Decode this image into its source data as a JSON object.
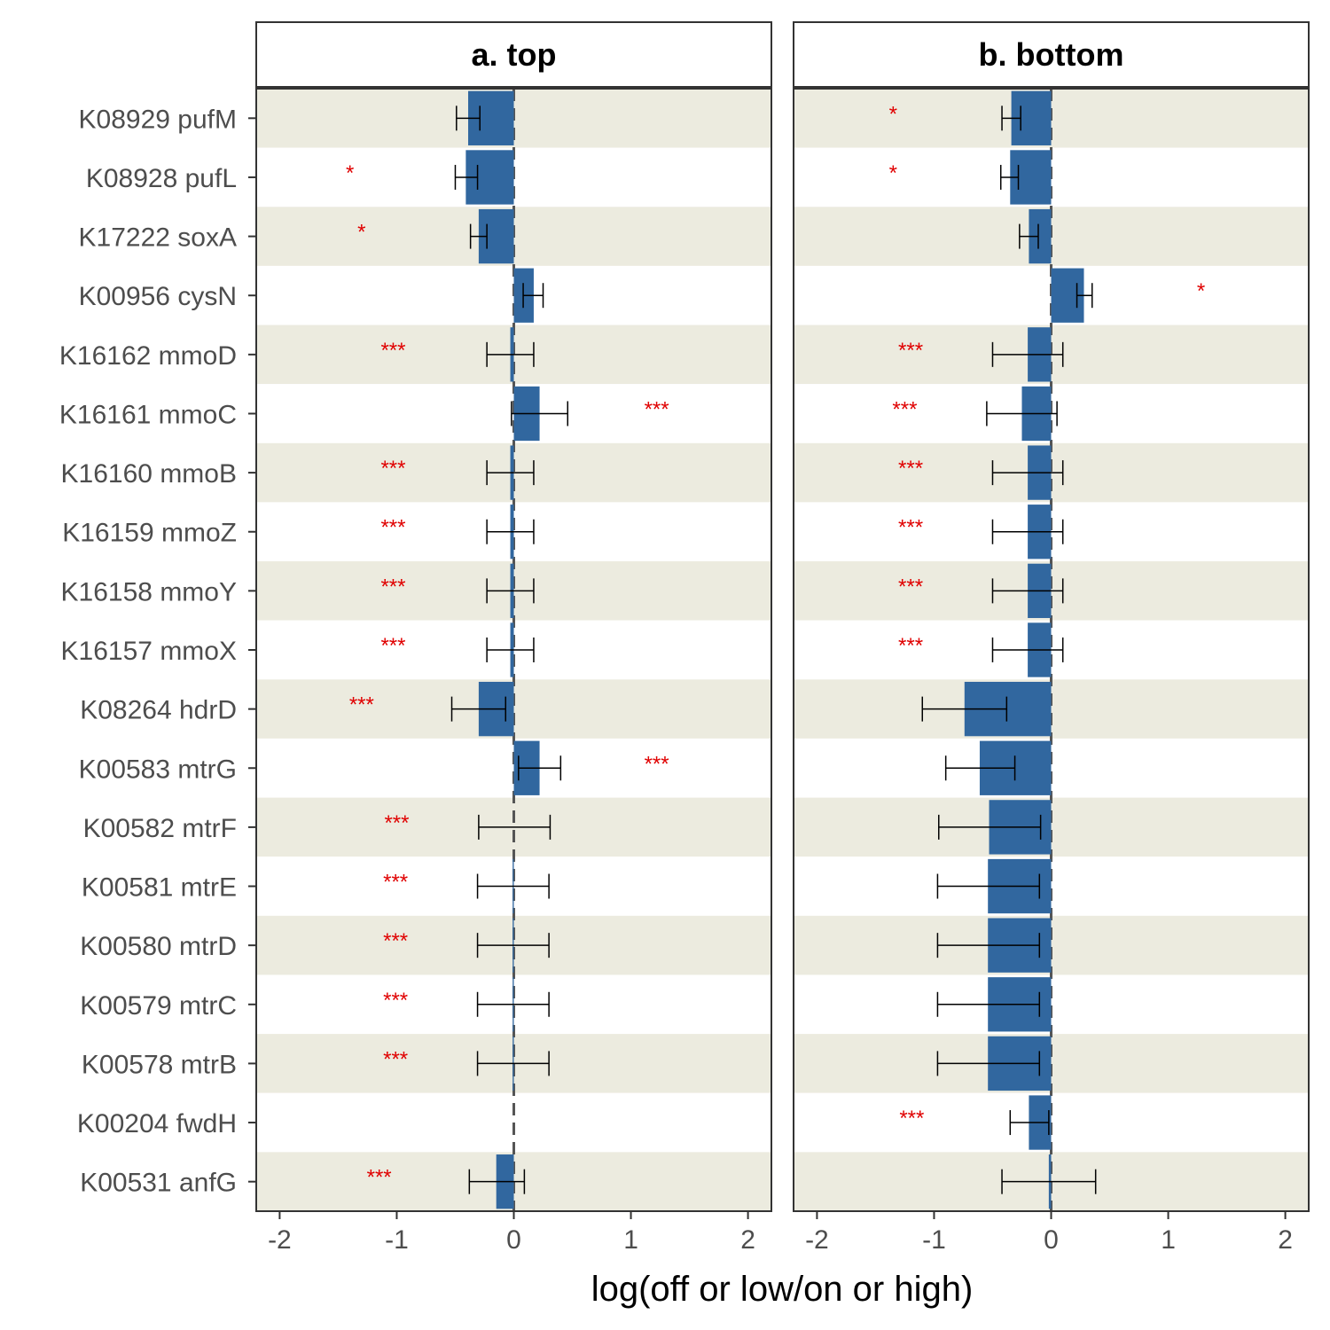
{
  "chart_data": {
    "type": "bar",
    "orientation": "horizontal",
    "xlabel": "log(off or low/on or high)",
    "xlim": [
      -2.2,
      2.2
    ],
    "x_ticks": [
      -2,
      -1,
      0,
      1,
      2
    ],
    "x_tick_labels": [
      "-2",
      "-1",
      "0",
      "1",
      "2"
    ],
    "reference_line": 0,
    "grid": false,
    "row_band_colors": [
      "#ecebdf",
      "#ffffff"
    ],
    "colors": {
      "bar": "#31679f",
      "significance": "#e00000",
      "error_bar": "#000000",
      "reference_line": "#555555"
    },
    "categories": [
      "K08929 pufM",
      "K08928 pufL",
      "K17222 soxA",
      "K00956 cysN",
      "K16162 mmoD",
      "K16161 mmoC",
      "K16160 mmoB",
      "K16159 mmoZ",
      "K16158 mmoY",
      "K16157 mmoX",
      "K08264 hdrD",
      "K00583 mtrG",
      "K00582 mtrF",
      "K00581 mtrE",
      "K00580 mtrD",
      "K00579 mtrC",
      "K00578 mtrB",
      "K00204 fwdH",
      "K00531 anfG"
    ],
    "panels": [
      {
        "title": "a. top",
        "values": [
          -0.39,
          -0.41,
          -0.3,
          0.17,
          -0.03,
          0.22,
          -0.03,
          -0.03,
          -0.03,
          -0.03,
          -0.3,
          0.22,
          0.0,
          -0.01,
          -0.01,
          -0.01,
          -0.01,
          0.0,
          -0.15
        ],
        "err_low": [
          -0.49,
          -0.5,
          -0.37,
          0.08,
          -0.23,
          -0.02,
          -0.23,
          -0.23,
          -0.23,
          -0.23,
          -0.53,
          0.04,
          -0.3,
          -0.31,
          -0.31,
          -0.31,
          -0.31,
          0.0,
          -0.38
        ],
        "err_high": [
          -0.29,
          -0.31,
          -0.23,
          0.25,
          0.17,
          0.46,
          0.17,
          0.17,
          0.17,
          0.17,
          -0.07,
          0.4,
          0.31,
          0.3,
          0.3,
          0.3,
          0.3,
          0.0,
          0.09
        ],
        "significance": [
          "",
          "*",
          "*",
          "",
          "***",
          "***",
          "***",
          "***",
          "***",
          "***",
          "***",
          "***",
          "***",
          "***",
          "***",
          "***",
          "***",
          "",
          "***"
        ],
        "significance_x": [
          null,
          -1.4,
          -1.3,
          null,
          -1.03,
          1.22,
          -1.03,
          -1.03,
          -1.03,
          -1.03,
          -1.3,
          1.22,
          -1.0,
          -1.01,
          -1.01,
          -1.01,
          -1.01,
          null,
          -1.15
        ]
      },
      {
        "title": "b. bottom",
        "values": [
          -0.34,
          -0.35,
          -0.19,
          0.28,
          -0.2,
          -0.25,
          -0.2,
          -0.2,
          -0.2,
          -0.2,
          -0.74,
          -0.61,
          -0.53,
          -0.54,
          -0.54,
          -0.54,
          -0.54,
          -0.19,
          -0.02
        ],
        "err_low": [
          -0.42,
          -0.43,
          -0.27,
          0.22,
          -0.5,
          -0.55,
          -0.5,
          -0.5,
          -0.5,
          -0.5,
          -1.1,
          -0.9,
          -0.96,
          -0.97,
          -0.97,
          -0.97,
          -0.97,
          -0.35,
          -0.42
        ],
        "err_high": [
          -0.26,
          -0.28,
          -0.11,
          0.35,
          0.1,
          0.05,
          0.1,
          0.1,
          0.1,
          0.1,
          -0.38,
          -0.31,
          -0.09,
          -0.1,
          -0.1,
          -0.1,
          -0.1,
          -0.02,
          0.38
        ],
        "significance": [
          "*",
          "*",
          "",
          "*",
          "***",
          "***",
          "***",
          "***",
          "***",
          "***",
          "",
          "",
          "",
          "",
          "",
          "",
          "",
          "***",
          ""
        ],
        "significance_x": [
          -1.35,
          -1.35,
          null,
          1.28,
          -1.2,
          -1.25,
          -1.2,
          -1.2,
          -1.2,
          -1.2,
          null,
          null,
          null,
          null,
          null,
          null,
          null,
          -1.19,
          null
        ]
      }
    ]
  }
}
